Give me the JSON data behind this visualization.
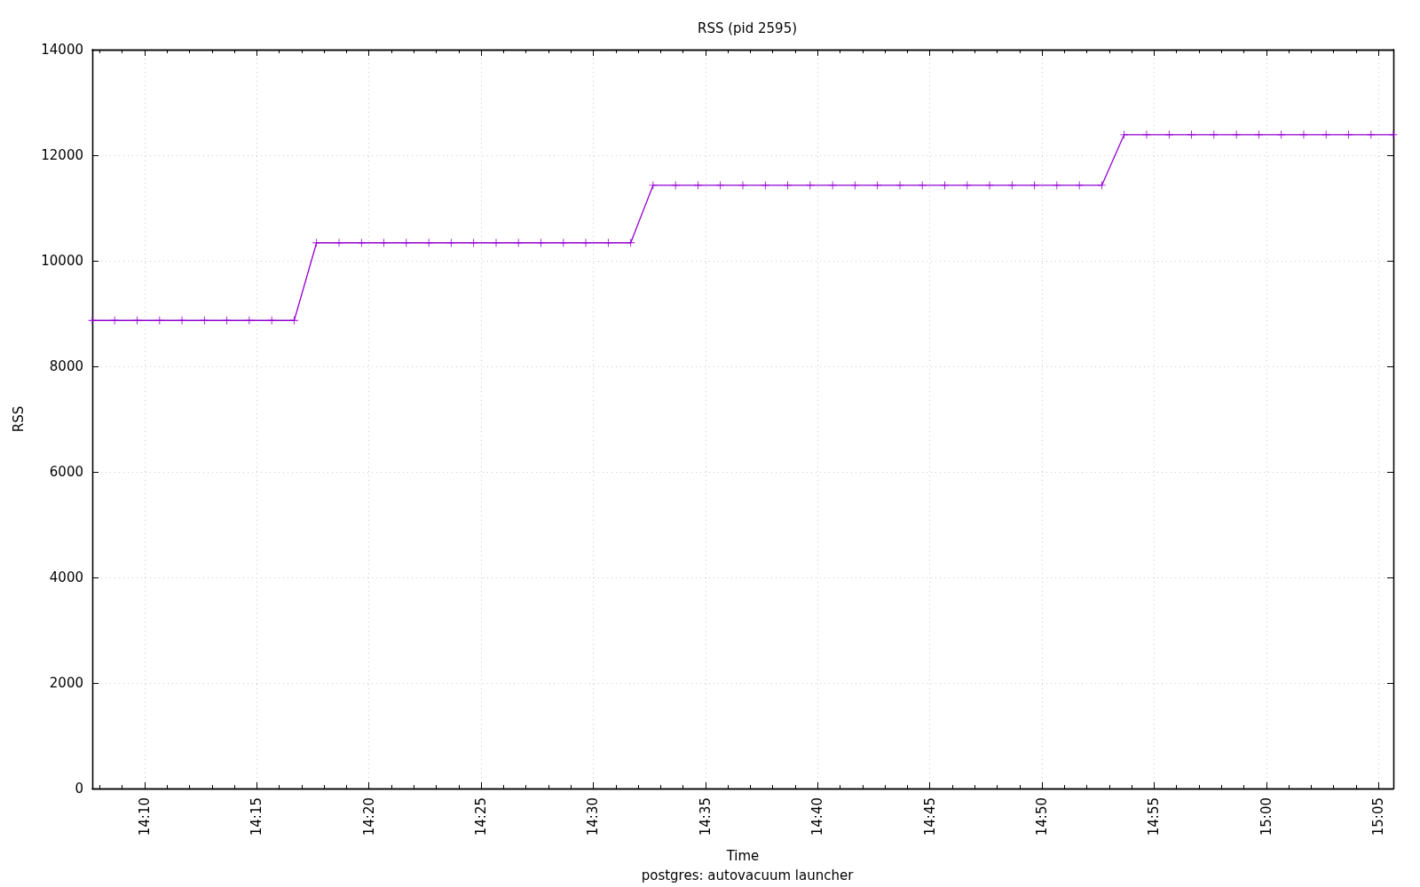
{
  "chart_data": {
    "type": "line",
    "title": "RSS (pid 2595)",
    "xlabel": "Time",
    "ylabel": "RSS",
    "annotations": [
      "postgres: autovacuum launcher"
    ],
    "x": [
      14.1278,
      14.1444,
      14.1611,
      14.1778,
      14.1944,
      14.2111,
      14.2278,
      14.2444,
      14.2611,
      14.2778,
      14.2944,
      14.3111,
      14.3278,
      14.3444,
      14.3611,
      14.3778,
      14.3944,
      14.4111,
      14.4278,
      14.4444,
      14.4611,
      14.4778,
      14.4944,
      14.5111,
      14.5278,
      14.5444,
      14.5611,
      14.5778,
      14.5944,
      14.6111,
      14.6278,
      14.6444,
      14.6611,
      14.6778,
      14.6944,
      14.7111,
      14.7278,
      14.7444,
      14.7611,
      14.7778,
      14.7944,
      14.8111,
      14.8278,
      14.8444,
      14.8611,
      14.8778,
      14.8944,
      14.9111,
      14.9278,
      14.9444,
      14.9611,
      14.9778,
      14.9944,
      15.0111,
      15.0278,
      15.0444,
      15.0611,
      15.0778,
      15.0944
    ],
    "values": [
      8870,
      8870,
      8870,
      8870,
      8870,
      8870,
      8870,
      8870,
      8870,
      8870,
      10340,
      10340,
      10340,
      10340,
      10340,
      10340,
      10340,
      10340,
      10340,
      10340,
      10340,
      10340,
      10340,
      10340,
      10340,
      11430,
      11430,
      11430,
      11430,
      11430,
      11430,
      11430,
      11430,
      11430,
      11430,
      11430,
      11430,
      11430,
      11430,
      11430,
      11430,
      11430,
      11430,
      11430,
      11430,
      11430,
      12390,
      12390,
      12390,
      12390,
      12390,
      12390,
      12390,
      12390,
      12390,
      12390,
      12390,
      12390,
      12390
    ],
    "color": "#9400d3",
    "marker": "cross",
    "line_style": "solid",
    "xlim": [
      14.1278,
      15.0944
    ],
    "xticks": [
      {
        "value": 14.1333,
        "label": null
      },
      {
        "value": 14.15,
        "label": null
      },
      {
        "value": 14.1667,
        "label": "14:10"
      },
      {
        "value": 14.1833,
        "label": null
      },
      {
        "value": 14.2,
        "label": null
      },
      {
        "value": 14.2167,
        "label": null
      },
      {
        "value": 14.2333,
        "label": null
      },
      {
        "value": 14.25,
        "label": "14:15"
      },
      {
        "value": 14.2667,
        "label": null
      },
      {
        "value": 14.2833,
        "label": null
      },
      {
        "value": 14.3,
        "label": null
      },
      {
        "value": 14.3167,
        "label": null
      },
      {
        "value": 14.3333,
        "label": "14:20"
      },
      {
        "value": 14.35,
        "label": null
      },
      {
        "value": 14.3667,
        "label": null
      },
      {
        "value": 14.3833,
        "label": null
      },
      {
        "value": 14.4,
        "label": null
      },
      {
        "value": 14.4167,
        "label": "14:25"
      },
      {
        "value": 14.4333,
        "label": null
      },
      {
        "value": 14.45,
        "label": null
      },
      {
        "value": 14.4667,
        "label": null
      },
      {
        "value": 14.4833,
        "label": null
      },
      {
        "value": 14.5,
        "label": "14:30"
      },
      {
        "value": 14.5167,
        "label": null
      },
      {
        "value": 14.5333,
        "label": null
      },
      {
        "value": 14.55,
        "label": null
      },
      {
        "value": 14.5667,
        "label": null
      },
      {
        "value": 14.5833,
        "label": "14:35"
      },
      {
        "value": 14.6,
        "label": null
      },
      {
        "value": 14.6167,
        "label": null
      },
      {
        "value": 14.6333,
        "label": null
      },
      {
        "value": 14.65,
        "label": null
      },
      {
        "value": 14.6667,
        "label": "14:40"
      },
      {
        "value": 14.6833,
        "label": null
      },
      {
        "value": 14.7,
        "label": null
      },
      {
        "value": 14.7167,
        "label": null
      },
      {
        "value": 14.7333,
        "label": null
      },
      {
        "value": 14.75,
        "label": "14:45"
      },
      {
        "value": 14.7667,
        "label": null
      },
      {
        "value": 14.7833,
        "label": null
      },
      {
        "value": 14.8,
        "label": null
      },
      {
        "value": 14.8167,
        "label": null
      },
      {
        "value": 14.8333,
        "label": "14:50"
      },
      {
        "value": 14.85,
        "label": null
      },
      {
        "value": 14.8667,
        "label": null
      },
      {
        "value": 14.8833,
        "label": null
      },
      {
        "value": 14.9,
        "label": null
      },
      {
        "value": 14.9167,
        "label": "14:55"
      },
      {
        "value": 14.9333,
        "label": null
      },
      {
        "value": 14.95,
        "label": null
      },
      {
        "value": 14.9667,
        "label": null
      },
      {
        "value": 14.9833,
        "label": null
      },
      {
        "value": 15,
        "label": "15:00"
      },
      {
        "value": 15.0167,
        "label": null
      },
      {
        "value": 15.0333,
        "label": null
      },
      {
        "value": 15.05,
        "label": null
      },
      {
        "value": 15.0667,
        "label": null
      },
      {
        "value": 15.0833,
        "label": "15:05"
      }
    ],
    "ylim": [
      0,
      14000
    ],
    "yticks": [
      0,
      2000,
      4000,
      6000,
      8000,
      10000,
      12000,
      14000
    ],
    "grid": true
  }
}
